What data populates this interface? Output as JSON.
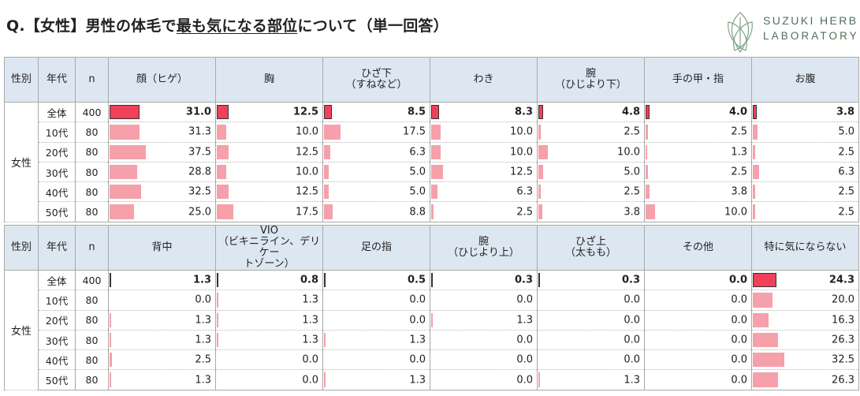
{
  "title": {
    "prefix": "Q.【女性】男性の体毛で",
    "underlined": "最も気になる部位",
    "suffix": "について（単一回答）"
  },
  "logo": {
    "line1": "SUZUKI HERB",
    "line2": "LABORATORY",
    "color": "#4f6f58"
  },
  "colors": {
    "header_bg": "#dde7f2",
    "highlight_bar": "#f0405a",
    "bar": "#f5a0aa"
  },
  "chart_data": [
    {
      "type": "table",
      "headers": {
        "gender": "性別",
        "age": "年代",
        "n": "n"
      },
      "columns": [
        "顔（ヒゲ）",
        "胸",
        "ひざ下\n（すねなど）",
        "わき",
        "腕\n（ひじより下）",
        "手の甲・指",
        "お腹"
      ],
      "gender_label": "女性",
      "rows": [
        {
          "age": "全体",
          "n": "400",
          "values": [
            31.0,
            12.5,
            8.5,
            8.3,
            4.8,
            4.0,
            3.8
          ]
        },
        {
          "age": "10代",
          "n": "80",
          "values": [
            31.3,
            10.0,
            17.5,
            10.0,
            2.5,
            2.5,
            5.0
          ]
        },
        {
          "age": "20代",
          "n": "80",
          "values": [
            37.5,
            12.5,
            6.3,
            10.0,
            10.0,
            1.3,
            2.5
          ]
        },
        {
          "age": "30代",
          "n": "80",
          "values": [
            28.8,
            10.0,
            5.0,
            12.5,
            5.0,
            2.5,
            6.3
          ]
        },
        {
          "age": "40代",
          "n": "80",
          "values": [
            32.5,
            12.5,
            5.0,
            6.3,
            2.5,
            3.8,
            2.5
          ]
        },
        {
          "age": "50代",
          "n": "80",
          "values": [
            25.0,
            17.5,
            8.8,
            2.5,
            3.8,
            10.0,
            2.5
          ]
        }
      ]
    },
    {
      "type": "table",
      "headers": {
        "gender": "性別",
        "age": "年代",
        "n": "n"
      },
      "columns": [
        "背中",
        "VIO\n（ビキニライン、デリケー\nトゾーン）",
        "足の指",
        "腕\n（ひじより上）",
        "ひざ上\n（太もも）",
        "その他",
        "特に気にならない"
      ],
      "gender_label": "女性",
      "rows": [
        {
          "age": "全体",
          "n": "400",
          "values": [
            1.3,
            0.8,
            0.5,
            0.3,
            0.3,
            0.0,
            24.3
          ]
        },
        {
          "age": "10代",
          "n": "80",
          "values": [
            0.0,
            1.3,
            0.0,
            0.0,
            0.0,
            0.0,
            20.0
          ]
        },
        {
          "age": "20代",
          "n": "80",
          "values": [
            1.3,
            1.3,
            0.0,
            1.3,
            0.0,
            0.0,
            16.3
          ]
        },
        {
          "age": "30代",
          "n": "80",
          "values": [
            1.3,
            1.3,
            1.3,
            0.0,
            0.0,
            0.0,
            26.3
          ]
        },
        {
          "age": "40代",
          "n": "80",
          "values": [
            2.5,
            0.0,
            0.0,
            0.0,
            0.0,
            0.0,
            32.5
          ]
        },
        {
          "age": "50代",
          "n": "80",
          "values": [
            1.3,
            0.0,
            1.3,
            0.0,
            1.3,
            0.0,
            26.3
          ]
        }
      ]
    }
  ]
}
